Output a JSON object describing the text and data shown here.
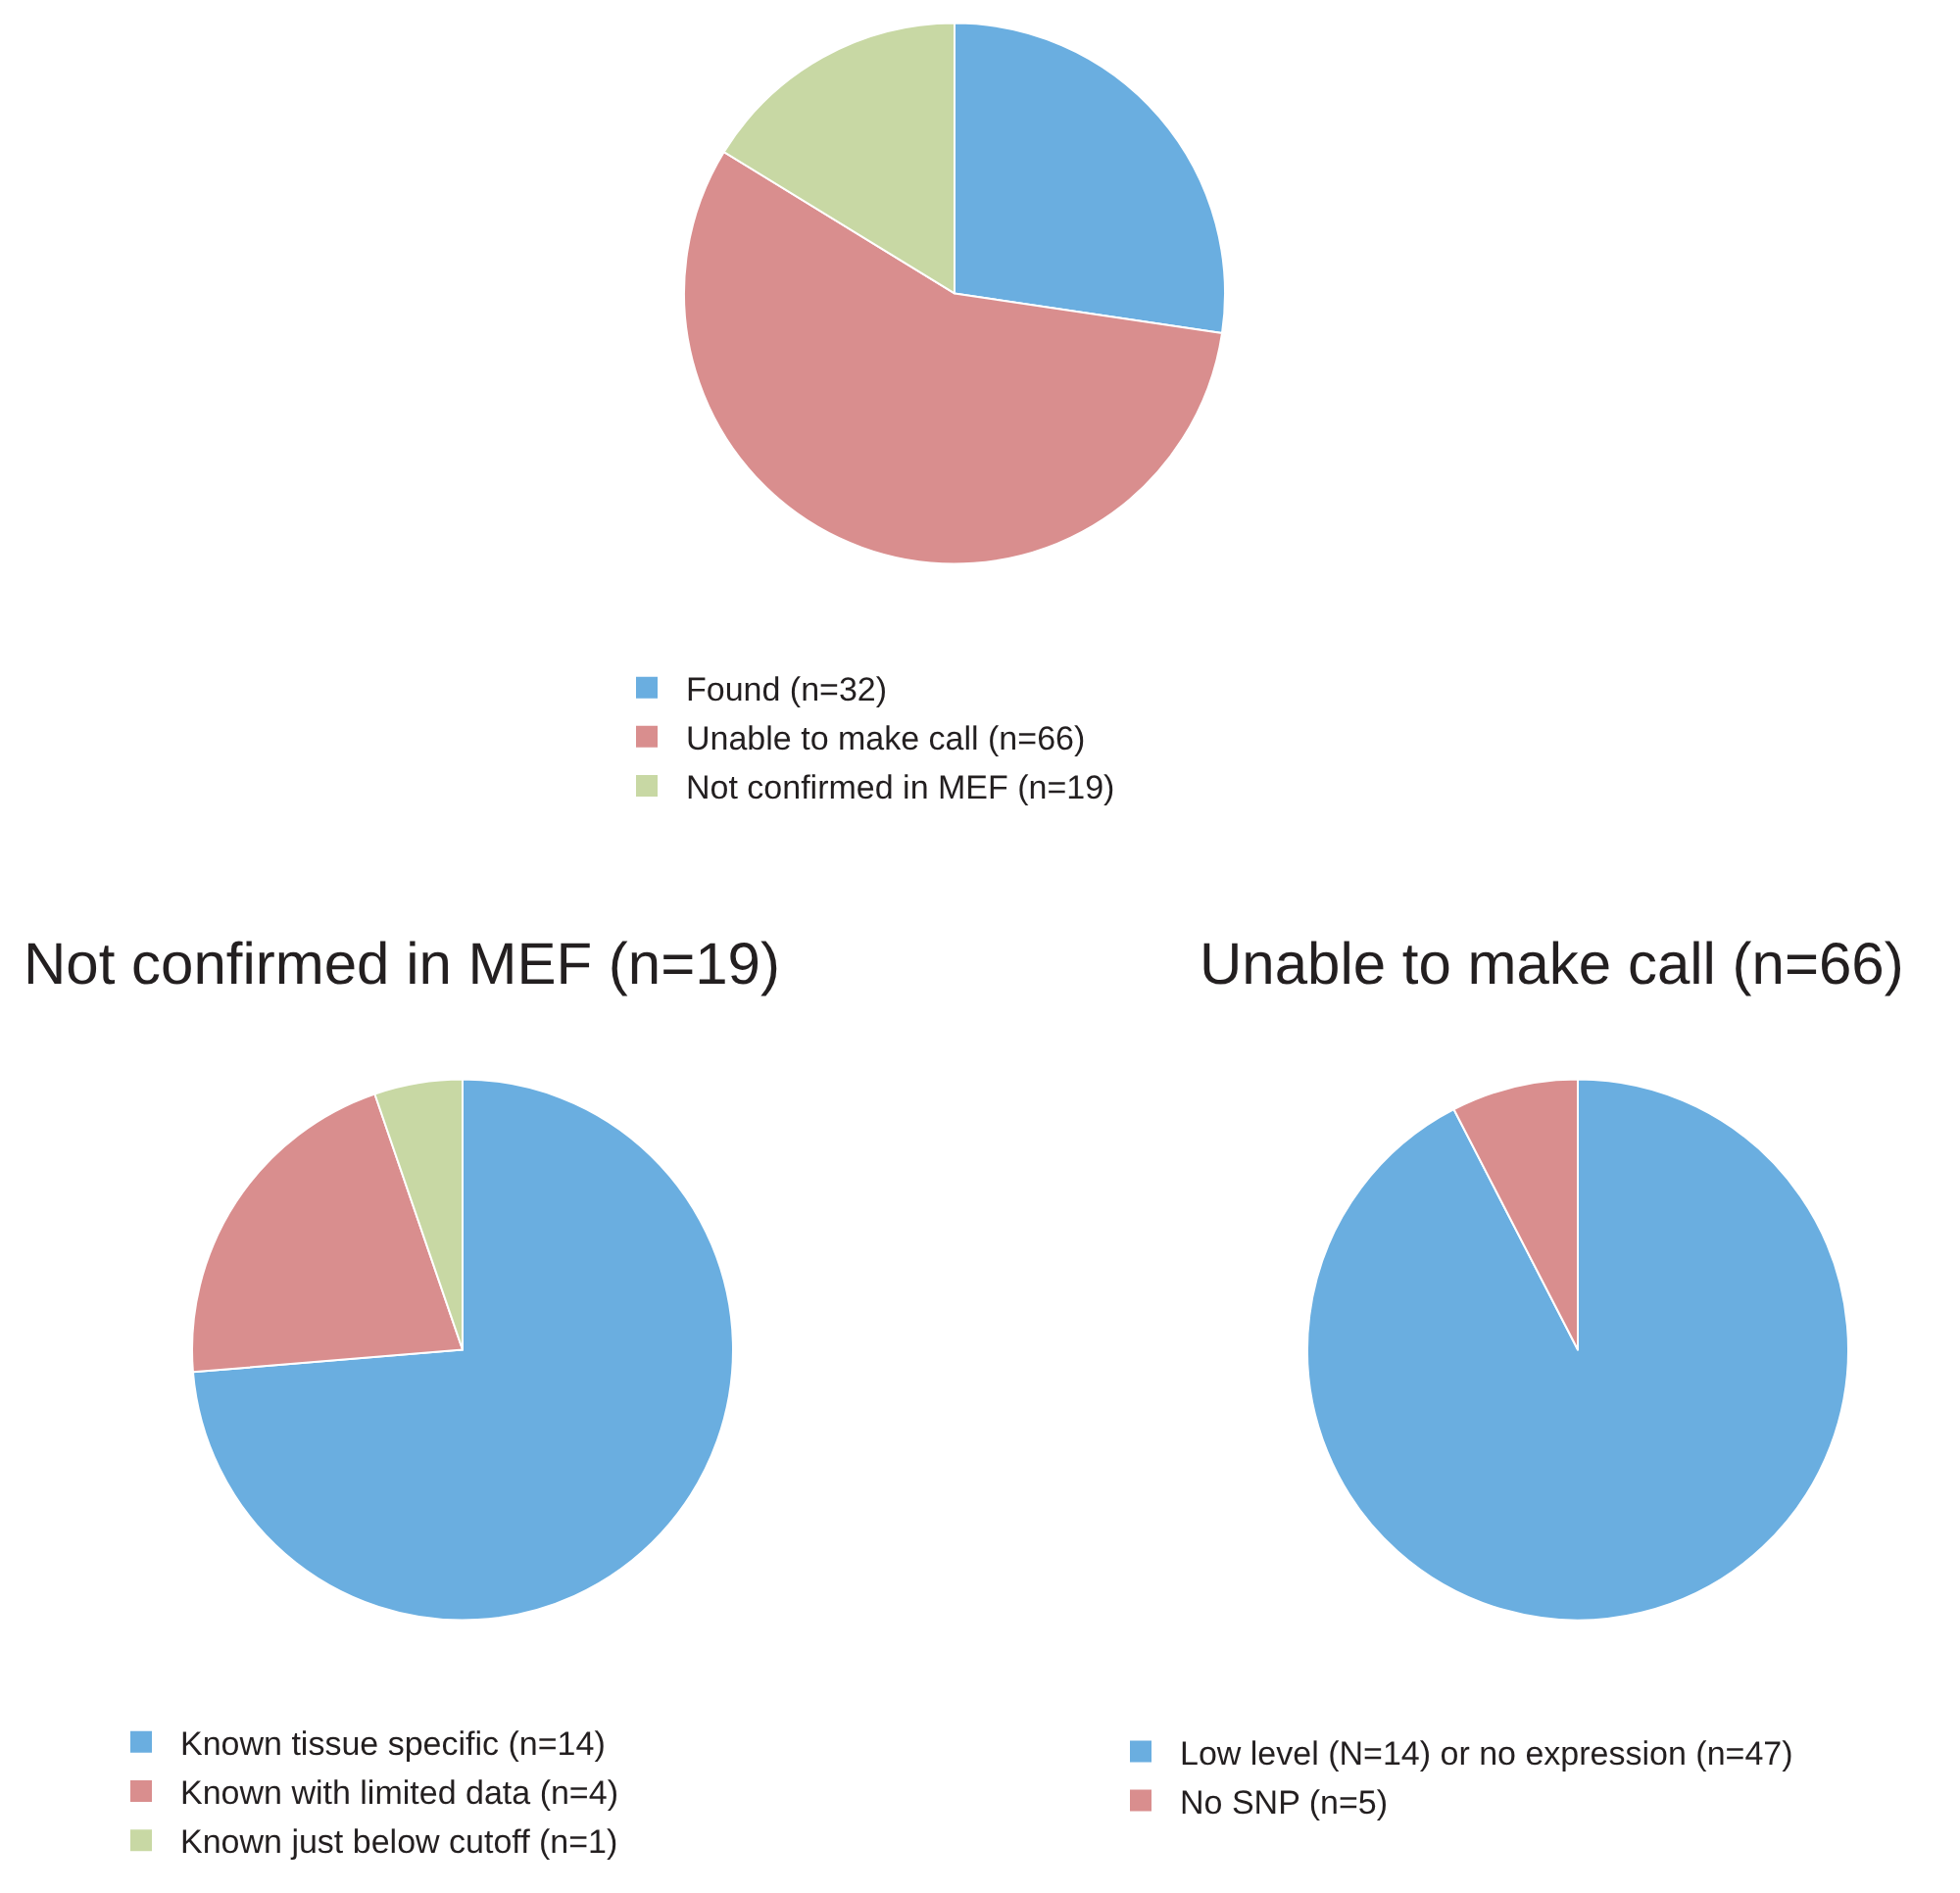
{
  "chart_data": [
    {
      "type": "pie",
      "categories": [
        "Found (n=32)",
        "Unable to make call (n=66)",
        "Not confirmed in MEF (n=19)"
      ],
      "values": [
        32,
        66,
        19
      ],
      "colors": [
        "#6aaee0",
        "#d98e8e",
        "#c8d8a4"
      ],
      "legend": "bottom"
    },
    {
      "type": "pie",
      "title": "Not confirmed in MEF (n=19)",
      "categories": [
        "Known tissue specific (n=14)",
        "Known with limited data (n=4)",
        "Known just below cutoff (n=1)"
      ],
      "values": [
        14,
        4,
        1
      ],
      "colors": [
        "#6aaee0",
        "#d98e8e",
        "#c8d8a4"
      ],
      "legend": "bottom"
    },
    {
      "type": "pie",
      "title": "Unable to make call (n=66)",
      "categories": [
        "Low level (N=14) or no expression (n=47)",
        "No SNP (n=5)"
      ],
      "values": [
        61,
        5
      ],
      "colors": [
        "#6aaee0",
        "#d98e8e"
      ],
      "legend": "bottom"
    }
  ]
}
